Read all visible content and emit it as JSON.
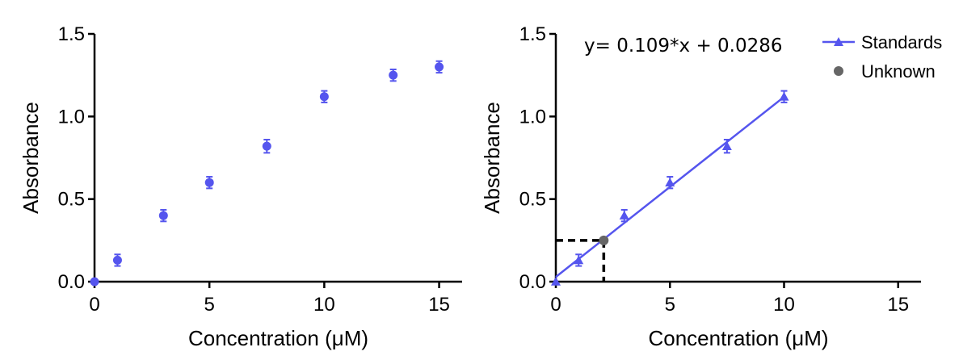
{
  "colors": {
    "series": "#5555ee",
    "unknown": "#666666",
    "axis": "#000000",
    "guide": "#000000"
  },
  "chart_data": [
    {
      "type": "scatter",
      "title": "",
      "xlabel": "Concentration (μM)",
      "ylabel": "Absorbance",
      "xlim": [
        0,
        16
      ],
      "ylim": [
        0,
        1.5
      ],
      "xticks": [
        "0",
        "5",
        "10",
        "15"
      ],
      "yticks": [
        "0.0",
        "0.5",
        "1.0",
        "1.5"
      ],
      "series": [
        {
          "marker": "circle",
          "x": [
            0,
            1,
            3,
            5,
            7.5,
            10,
            13,
            15
          ],
          "y": [
            0.0,
            0.13,
            0.4,
            0.6,
            0.82,
            1.12,
            1.25,
            1.3
          ],
          "err": [
            0.0,
            0.035,
            0.035,
            0.035,
            0.04,
            0.035,
            0.035,
            0.035
          ]
        }
      ]
    },
    {
      "type": "scatter",
      "title": "",
      "xlabel": "Concentration (μM)",
      "ylabel": "Absorbance",
      "xlim": [
        0,
        16
      ],
      "ylim": [
        0,
        1.5
      ],
      "xticks": [
        "0",
        "5",
        "10",
        "15"
      ],
      "yticks": [
        "0.0",
        "0.5",
        "1.0",
        "1.5"
      ],
      "equation": "y= 0.109*x + 0.0286",
      "fit": {
        "slope": 0.109,
        "intercept": 0.0286,
        "x_range": [
          0,
          10
        ]
      },
      "legend_position": "top-right",
      "series": [
        {
          "name": "Standards",
          "marker": "triangle",
          "x": [
            0,
            1,
            3,
            5,
            7.5,
            10
          ],
          "y": [
            0.0,
            0.13,
            0.4,
            0.6,
            0.82,
            1.12
          ],
          "err": [
            0.0,
            0.035,
            0.035,
            0.035,
            0.04,
            0.035
          ]
        },
        {
          "name": "Unknown",
          "marker": "circle",
          "x": [
            2.1
          ],
          "y": [
            0.25
          ]
        }
      ]
    }
  ]
}
